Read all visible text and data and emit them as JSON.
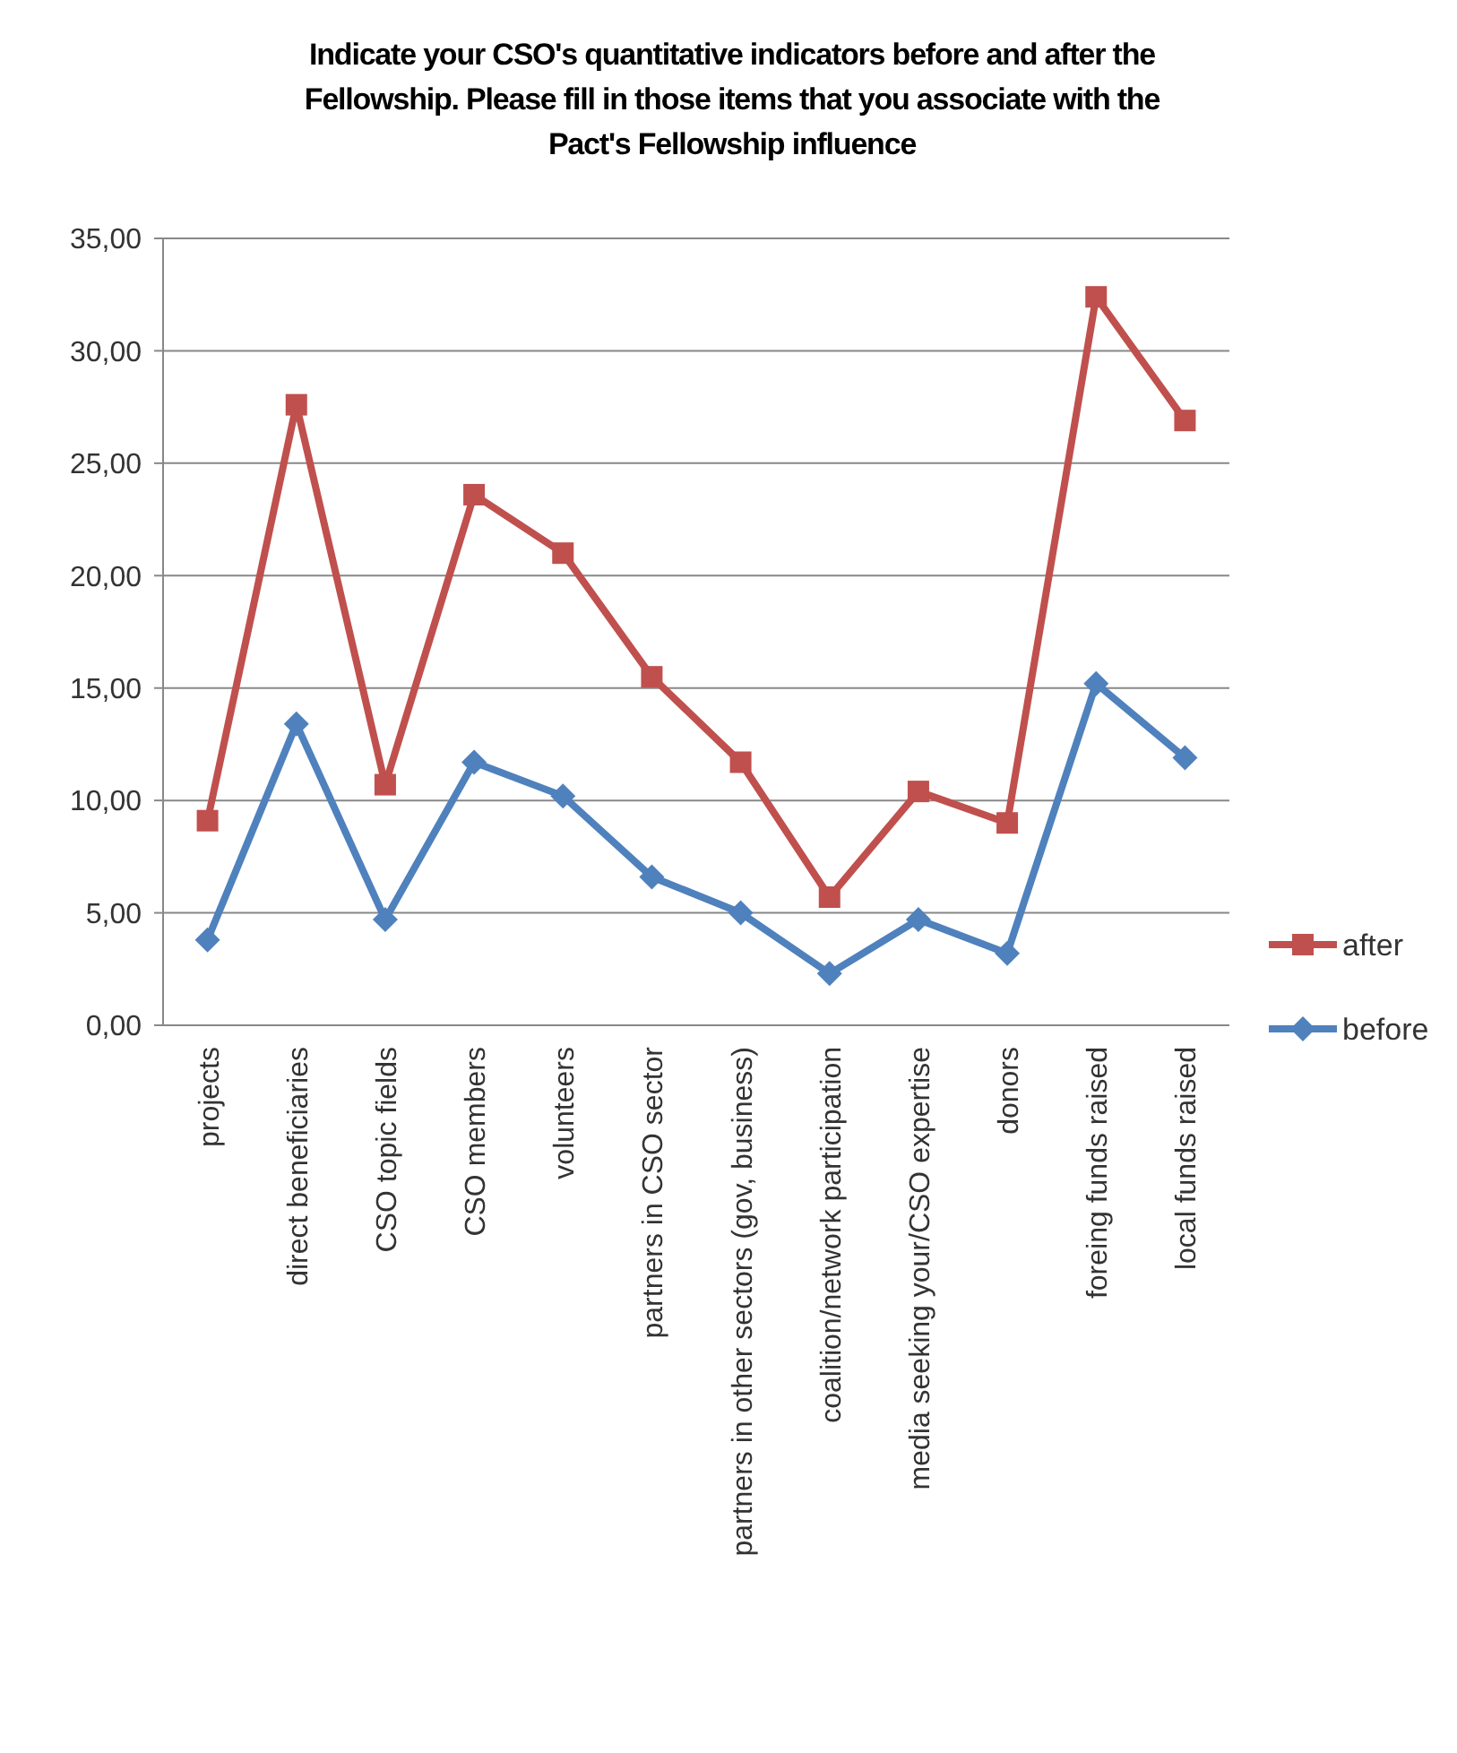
{
  "chart_data": {
    "type": "line",
    "title": "Indicate your CSO's quantitative indicators before and after the Fellowship. Please fill in those items that you associate with the Pact's Fellowship influence",
    "categories": [
      "projects",
      "direct beneficiaries",
      "CSO topic fields",
      "CSO members",
      "volunteers",
      "partners in CSO sector",
      "partners in other sectors (gov, business)",
      "coalition/network participation",
      "media seeking your/CSO expertise",
      "donors",
      "foreing funds raised",
      "local funds raised"
    ],
    "series": [
      {
        "name": "after",
        "color": "#c0504d",
        "marker": "square",
        "values": [
          9.1,
          27.6,
          10.7,
          23.6,
          21.0,
          15.5,
          11.7,
          5.7,
          10.4,
          9.0,
          32.4,
          26.9
        ]
      },
      {
        "name": "before",
        "color": "#4f81bd",
        "marker": "diamond",
        "values": [
          3.8,
          13.4,
          4.7,
          11.7,
          10.2,
          6.6,
          5.0,
          2.3,
          4.7,
          3.2,
          15.2,
          11.9
        ]
      }
    ],
    "ylim": [
      0,
      35
    ],
    "yticks": [
      {
        "value": 0,
        "label": "0,00"
      },
      {
        "value": 5,
        "label": "5,00"
      },
      {
        "value": 10,
        "label": "10,00"
      },
      {
        "value": 15,
        "label": "15,00"
      },
      {
        "value": 20,
        "label": "20,00"
      },
      {
        "value": 25,
        "label": "25,00"
      },
      {
        "value": 30,
        "label": "30,00"
      },
      {
        "value": 35,
        "label": "35,00"
      }
    ],
    "grid": "y",
    "legend": "right"
  }
}
